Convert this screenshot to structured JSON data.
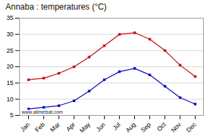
{
  "chart_data": {
    "type": "line",
    "title": "Annaba : temperatures (°C)",
    "categories": [
      "Jan",
      "Feb",
      "Mar",
      "Apr",
      "May",
      "Jun",
      "Jul",
      "Aug",
      "Sep",
      "Oct",
      "Nov",
      "Dec"
    ],
    "series": [
      {
        "color": "#cc0000",
        "values": [
          16.0,
          16.5,
          18.0,
          20.0,
          23.0,
          26.5,
          30.0,
          30.5,
          28.5,
          25.0,
          20.5,
          17.0
        ]
      },
      {
        "color": "#0000cc",
        "values": [
          7.0,
          7.5,
          8.0,
          9.5,
          12.5,
          16.0,
          18.5,
          19.5,
          17.5,
          14.0,
          10.5,
          8.5
        ]
      }
    ],
    "ylim": [
      5,
      35
    ],
    "yticks": [
      5,
      10,
      15,
      20,
      25,
      30,
      35
    ],
    "grid": true,
    "marker": "square",
    "annotation": "www.allmetsat.com"
  }
}
